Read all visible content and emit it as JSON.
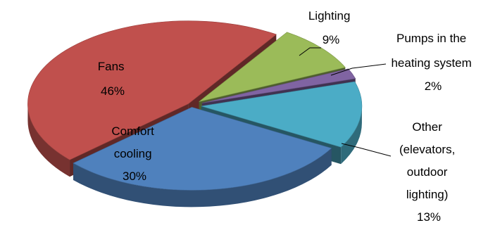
{
  "chart_data": {
    "type": "pie",
    "title": "",
    "legend": "none",
    "style": "3d-exploded",
    "slices": [
      {
        "label": "Fans",
        "value": 46,
        "display": "46%",
        "color": "#c0504d"
      },
      {
        "label": "Comfort cooling",
        "value": 30,
        "display": "30%",
        "color": "#4f81bd"
      },
      {
        "label": "Other (elevators, outdoor lighting)",
        "value": 13,
        "display": "13%",
        "color": "#4bacc6"
      },
      {
        "label": "Pumps in the heating system",
        "value": 2,
        "display": "2%",
        "color": "#8064a2"
      },
      {
        "label": "Lighting",
        "value": 9,
        "display": "9%",
        "color": "#9bbb59"
      }
    ],
    "labels": {
      "fans": [
        "Fans",
        "46%"
      ],
      "comfort_cooling": [
        "Comfort",
        "cooling",
        "30%"
      ],
      "lighting": [
        "Lighting",
        "9%"
      ],
      "pumps": [
        "Pumps in the",
        "heating system",
        "2%"
      ],
      "other": [
        "Other",
        "(elevators,",
        "outdoor",
        "lighting)",
        "13%"
      ]
    }
  }
}
